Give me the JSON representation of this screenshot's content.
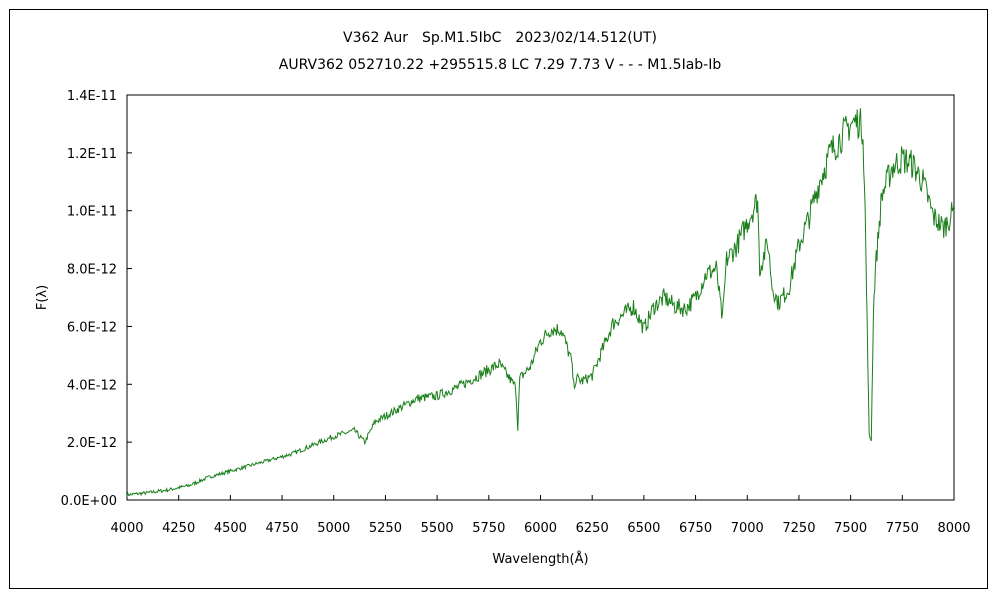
{
  "chart_data": {
    "type": "line",
    "title": "V362 Aur　Sp.M1.5IbC　2023/02/14.512(UT)",
    "subtitle": "AURV362 052710.22 +295515.8 LC 7.29 7.73 V - - - M1.5Iab-Ib",
    "xlabel": "Wavelength(Å)",
    "ylabel": "F(λ)",
    "xlim": [
      4000,
      8000
    ],
    "ylim": [
      0,
      1.4e-11
    ],
    "x_ticks": [
      4000,
      4250,
      4500,
      4750,
      5000,
      5250,
      5500,
      5750,
      6000,
      6250,
      6500,
      6750,
      7000,
      7250,
      7500,
      7750,
      8000
    ],
    "x_tick_labels": [
      "4000",
      "4250",
      "4500",
      "4750",
      "5000",
      "5250",
      "5500",
      "5750",
      "6000",
      "6250",
      "6500",
      "6750",
      "7000",
      "7250",
      "7500",
      "7750",
      "8000"
    ],
    "y_ticks": [
      0,
      2e-12,
      4e-12,
      6e-12,
      8e-12,
      1e-11,
      1.2e-11,
      1.4e-11
    ],
    "y_tick_labels": [
      "0.0E+00",
      "2.0E-12",
      "4.0E-12",
      "6.0E-12",
      "8.0E-12",
      "1.0E-11",
      "1.2E-11",
      "1.4E-11"
    ],
    "grid": false,
    "legend": "none",
    "line_color": "#1a7f1a",
    "series": [
      {
        "x": [
          4000,
          4100,
          4200,
          4300,
          4400,
          4500,
          4600,
          4700,
          4800,
          4900,
          5000,
          5100,
          5150,
          5200,
          5300,
          5400,
          5500,
          5600,
          5700,
          5800,
          5850,
          5880,
          5890,
          5900,
          5950,
          6000,
          6050,
          6100,
          6150,
          6160,
          6180,
          6200,
          6250,
          6300,
          6350,
          6400,
          6450,
          6500,
          6550,
          6600,
          6650,
          6700,
          6750,
          6800,
          6850,
          6880,
          6900,
          6950,
          7000,
          7050,
          7060,
          7100,
          7120,
          7150,
          7200,
          7250,
          7300,
          7350,
          7400,
          7450,
          7500,
          7540,
          7560,
          7570,
          7580,
          7590,
          7600,
          7610,
          7620,
          7650,
          7700,
          7750,
          7800,
          7850,
          7900,
          7950,
          8000
        ],
        "y": [
          1.8e-13,
          2.5e-13,
          3.5e-13,
          5e-13,
          8e-13,
          1e-12,
          1.2e-12,
          1.4e-12,
          1.6e-12,
          1.9e-12,
          2.2e-12,
          2.4e-12,
          2e-12,
          2.7e-12,
          3.1e-12,
          3.5e-12,
          3.6e-12,
          3.9e-12,
          4.3e-12,
          4.7e-12,
          4.2e-12,
          3.9e-12,
          2.5e-12,
          4.2e-12,
          4.6e-12,
          5.5e-12,
          5.9e-12,
          5.9e-12,
          4.8e-12,
          4e-12,
          4.2e-12,
          4.1e-12,
          4.3e-12,
          5.2e-12,
          6.1e-12,
          6.4e-12,
          6.7e-12,
          5.9e-12,
          6.7e-12,
          7e-12,
          6.7e-12,
          6.6e-12,
          7e-12,
          7.8e-12,
          8e-12,
          6.2e-12,
          8.3e-12,
          8.8e-12,
          9.6e-12,
          1.04e-11,
          8e-12,
          8.9e-12,
          7.4e-12,
          6.8e-12,
          7.3e-12,
          8.8e-12,
          9.8e-12,
          1.1e-11,
          1.2e-11,
          1.25e-11,
          1.3e-11,
          1.31e-11,
          1.28e-11,
          1e-11,
          6e-12,
          2.2e-12,
          2.1e-12,
          6.5e-12,
          8e-12,
          1.05e-11,
          1.15e-11,
          1.18e-11,
          1.16e-11,
          1.1e-11,
          9.8e-12,
          9.4e-12,
          1e-11
        ]
      }
    ]
  }
}
